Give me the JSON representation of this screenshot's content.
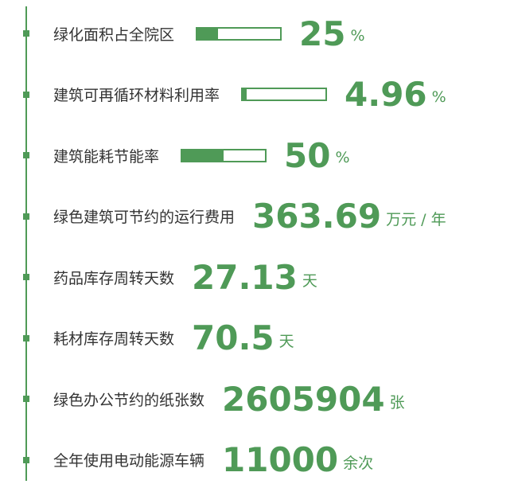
{
  "items": [
    {
      "label": "绿化面积占全院区",
      "value": 25,
      "unit": "%",
      "show_bar": true
    },
    {
      "label": "建筑可再循环材料利用率",
      "value": 4.96,
      "unit": "%",
      "show_bar": true
    },
    {
      "label": "建筑能耗节能率",
      "value": 50,
      "unit": "%",
      "show_bar": true
    },
    {
      "label": "绿色建筑可节约的运行费用",
      "value": 363.69,
      "unit": "万元 / 年",
      "show_bar": false
    },
    {
      "label": "药品库存周转天数",
      "value": 27.13,
      "unit": "天",
      "show_bar": false
    },
    {
      "label": "耗材库存周转天数",
      "value": 70.5,
      "unit": "天",
      "show_bar": false
    },
    {
      "label": "绿色办公节约的纸张数",
      "value": 2605904,
      "unit": "张",
      "show_bar": false
    },
    {
      "label": "全年使用电动能源车辆",
      "value": 11000,
      "unit": "余次",
      "show_bar": false
    }
  ],
  "bar_lim": [
    0,
    100
  ],
  "color": "#4f9a57"
}
